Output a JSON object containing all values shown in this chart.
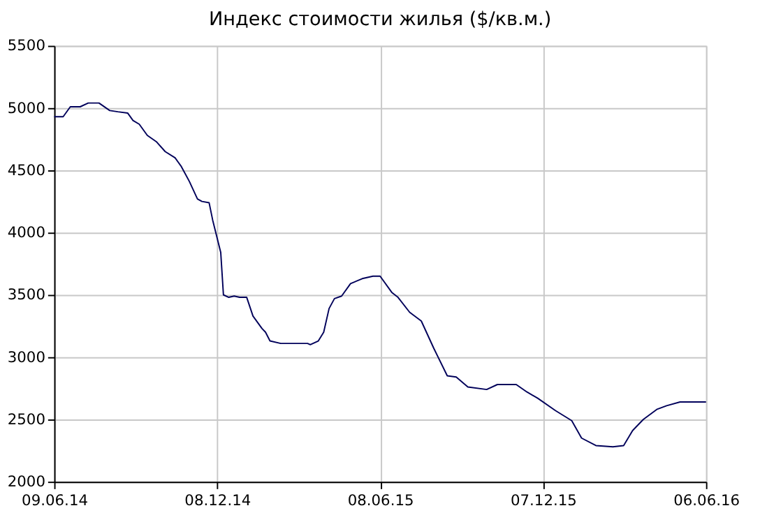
{
  "chart_data": {
    "type": "line",
    "title": "Индекс стоимости жилья ($/кв.м.)",
    "x": [
      "2014-06-09",
      "2014-06-19",
      "2014-06-27",
      "2014-07-08",
      "2014-07-17",
      "2014-07-29",
      "2014-08-10",
      "2014-08-19",
      "2014-08-30",
      "2014-09-05",
      "2014-09-12",
      "2014-09-21",
      "2014-10-01",
      "2014-10-11",
      "2014-10-22",
      "2014-10-29",
      "2014-11-07",
      "2014-11-16",
      "2014-11-21",
      "2014-11-29",
      "2014-12-03",
      "2014-12-12",
      "2014-12-15",
      "2014-12-21",
      "2014-12-27",
      "2015-01-02",
      "2015-01-10",
      "2015-01-17",
      "2015-01-27",
      "2015-01-31",
      "2015-02-05",
      "2015-02-17",
      "2015-03-19",
      "2015-03-22",
      "2015-03-31",
      "2015-04-06",
      "2015-04-12",
      "2015-04-18",
      "2015-04-26",
      "2015-05-06",
      "2015-05-19",
      "2015-05-31",
      "2015-06-08",
      "2015-06-21",
      "2015-06-28",
      "2015-07-11",
      "2015-07-24",
      "2015-08-07",
      "2015-08-22",
      "2015-09-01",
      "2015-09-14",
      "2015-10-05",
      "2015-10-17",
      "2015-11-07",
      "2015-11-19",
      "2015-12-01",
      "2015-12-21",
      "2016-01-08",
      "2016-01-19",
      "2016-02-04",
      "2016-02-23",
      "2016-03-06",
      "2016-03-16",
      "2016-03-28",
      "2016-04-12",
      "2016-04-23",
      "2016-05-08",
      "2016-06-06"
    ],
    "series": [
      {
        "color": "#00005a",
        "values": [
          4930,
          4930,
          5010,
          5010,
          5040,
          5040,
          4980,
          4970,
          4960,
          4900,
          4870,
          4780,
          4730,
          4650,
          4600,
          4530,
          4410,
          4270,
          4250,
          4240,
          4100,
          3840,
          3500,
          3480,
          3490,
          3480,
          3480,
          3330,
          3230,
          3200,
          3130,
          3110,
          3110,
          3100,
          3130,
          3200,
          3390,
          3470,
          3490,
          3590,
          3630,
          3650,
          3650,
          3520,
          3480,
          3360,
          3290,
          3070,
          2850,
          2840,
          2760,
          2740,
          2780,
          2780,
          2720,
          2670,
          2570,
          2490,
          2350,
          2290,
          2280,
          2290,
          2410,
          2500,
          2580,
          2610,
          2640,
          2640
        ]
      }
    ],
    "xlim": [
      "2014-06-09",
      "2016-06-06"
    ],
    "xticks": [
      {
        "value": "2014-06-09",
        "label": "09.06.14"
      },
      {
        "value": "2014-12-08",
        "label": "08.12.14"
      },
      {
        "value": "2015-06-08",
        "label": "08.06.15"
      },
      {
        "value": "2015-12-07",
        "label": "07.12.15"
      },
      {
        "value": "2016-06-06",
        "label": "06.06.16"
      }
    ],
    "ylim": [
      2000,
      5500
    ],
    "yticks": [
      2000,
      2500,
      3000,
      3500,
      4000,
      4500,
      5000,
      5500
    ],
    "grid": true,
    "marker": "none",
    "line_style": "solid"
  }
}
